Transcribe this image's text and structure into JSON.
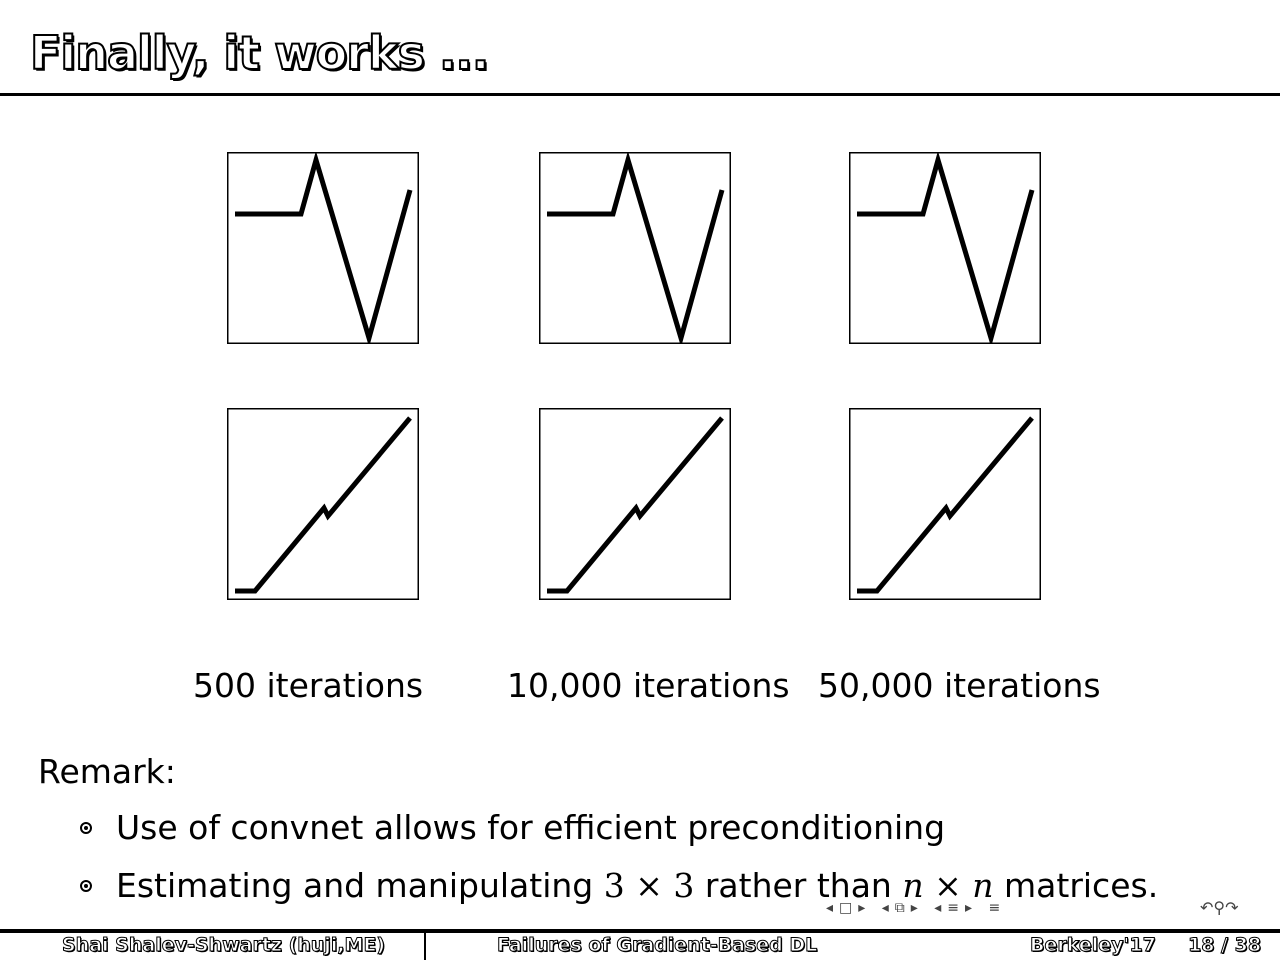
{
  "slide": {
    "title": "Finally, it works ..."
  },
  "chart_data": [
    {
      "type": "line",
      "panel": "top-left",
      "x": [
        0,
        1,
        2,
        3,
        4,
        5
      ],
      "y": [
        0.67,
        0.67,
        1.0,
        -1.0,
        0.9,
        null
      ]
    },
    {
      "type": "line",
      "panel": "bottom-left",
      "x": [
        0,
        1,
        2,
        3,
        4
      ],
      "y": [
        0,
        0,
        0.47,
        0.45,
        1.0
      ]
    }
  ],
  "captions": [
    "500 iterations",
    "10,000 iterations",
    "50,000 iterations"
  ],
  "remark": {
    "heading": "Remark:",
    "bullets": [
      {
        "text": "Use of convnet allows for efficient preconditioning"
      },
      {
        "pre": "Estimating and manipulating ",
        "m1a": "3",
        "times1": " × ",
        "m1b": "3",
        "mid": " rather than ",
        "m2a": "n",
        "times2": " × ",
        "m2b": "n",
        "post": " matrices."
      }
    ]
  },
  "footer": {
    "author": "Shai Shalev-Shwartz (huji,ME)",
    "talk": "Failures of Gradient-Based DL",
    "venue": "Berkeley'17",
    "page": "18 / 38"
  }
}
